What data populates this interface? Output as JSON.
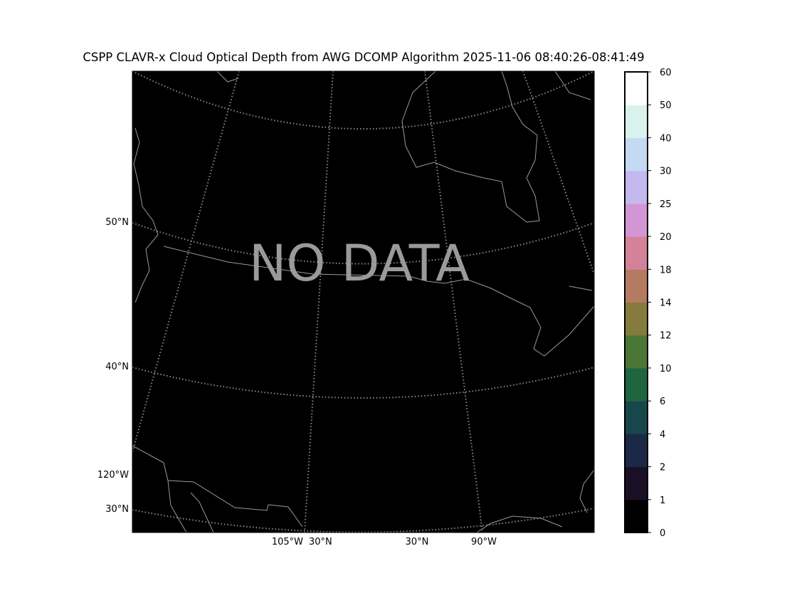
{
  "title": "CSPP CLAVR-x Cloud Optical Depth from AWG DCOMP Algorithm 2025-11-06 08:40:26-08:41:49",
  "map": {
    "background_color": "#000000",
    "overlay_text": "NO DATA",
    "left_labels": [
      "50°N",
      "40°N",
      "120°W",
      "30°N"
    ],
    "bottom_labels": [
      "105°W",
      "30°N",
      "30°N",
      "90°W"
    ]
  },
  "colorbar": {
    "ticks": [
      "0",
      "1",
      "2",
      "4",
      "6",
      "10",
      "12",
      "14",
      "18",
      "20",
      "25",
      "30",
      "40",
      "50",
      "60"
    ],
    "colors": [
      "#000000",
      "#1a0f24",
      "#1b2846",
      "#17474a",
      "#1f6640",
      "#4a7735",
      "#857b3c",
      "#b57b62",
      "#d4829a",
      "#d396d4",
      "#c3b9ef",
      "#c3daf2",
      "#daf2ec",
      "#ffffff"
    ]
  }
}
